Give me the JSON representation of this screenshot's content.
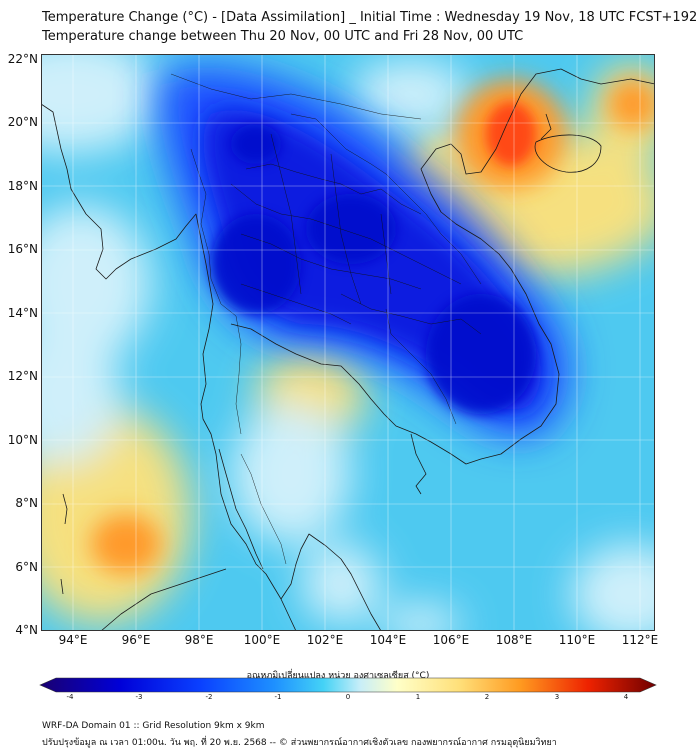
{
  "header": {
    "title_line1": "Temperature Change (°C) - [Data Assimilation] _ Initial Time : Wednesday 19 Nov, 18 UTC FCST+192",
    "title_line2": "Temperature change between Thu 20 Nov, 00 UTC and Fri 28 Nov, 00 UTC"
  },
  "axes": {
    "lat_labels": [
      "22°N",
      "20°N",
      "18°N",
      "16°N",
      "14°N",
      "12°N",
      "10°N",
      "8°N",
      "6°N",
      "4°N"
    ],
    "lon_labels": [
      "94°E",
      "96°E",
      "98°E",
      "100°E",
      "102°E",
      "104°E",
      "106°E",
      "108°E",
      "110°E",
      "112°E"
    ],
    "lat_range": [
      4,
      22.3
    ],
    "lon_range": [
      93.0,
      112.5
    ]
  },
  "colorbar": {
    "caption": "อุณหภูมิเปลี่ยนแปลง หน่วย องศาเซลเซียส (°C)",
    "ticks": [
      "-4",
      "-3",
      "-2",
      "-1",
      "0",
      "1",
      "2",
      "3",
      "4"
    ],
    "colors": [
      "#1a0070",
      "#0000d8",
      "#0a40ff",
      "#1e90ff",
      "#44d2f6",
      "#c8eef8",
      "#ffffc8",
      "#ffe07a",
      "#ff9a20",
      "#ee2200",
      "#700000"
    ]
  },
  "footer": {
    "line1": "WRF-DA Domain 01 :: Grid Resolution 9km x 9km",
    "line2": "ปรับปรุงข้อมูล ณ เวลา 01:00น. วัน พฤ. ที่ 20 พ.ย. 2568 -- © ส่วนพยากรณ์อากาศเชิงตัวเลข กองพยากรณ์อากาศ กรมอุตุนิยมวิทยา"
  },
  "colors": {
    "ocean_base": "#4ec9f0",
    "cold_core": "#0a1fe0",
    "deep_cold": "#0010cc",
    "warm_yellow": "#ffe27a",
    "warm_orange": "#ff9a2a",
    "hot_red": "#ff4a12",
    "light": "#d6f2fb",
    "coast": "#1a1a1a"
  }
}
